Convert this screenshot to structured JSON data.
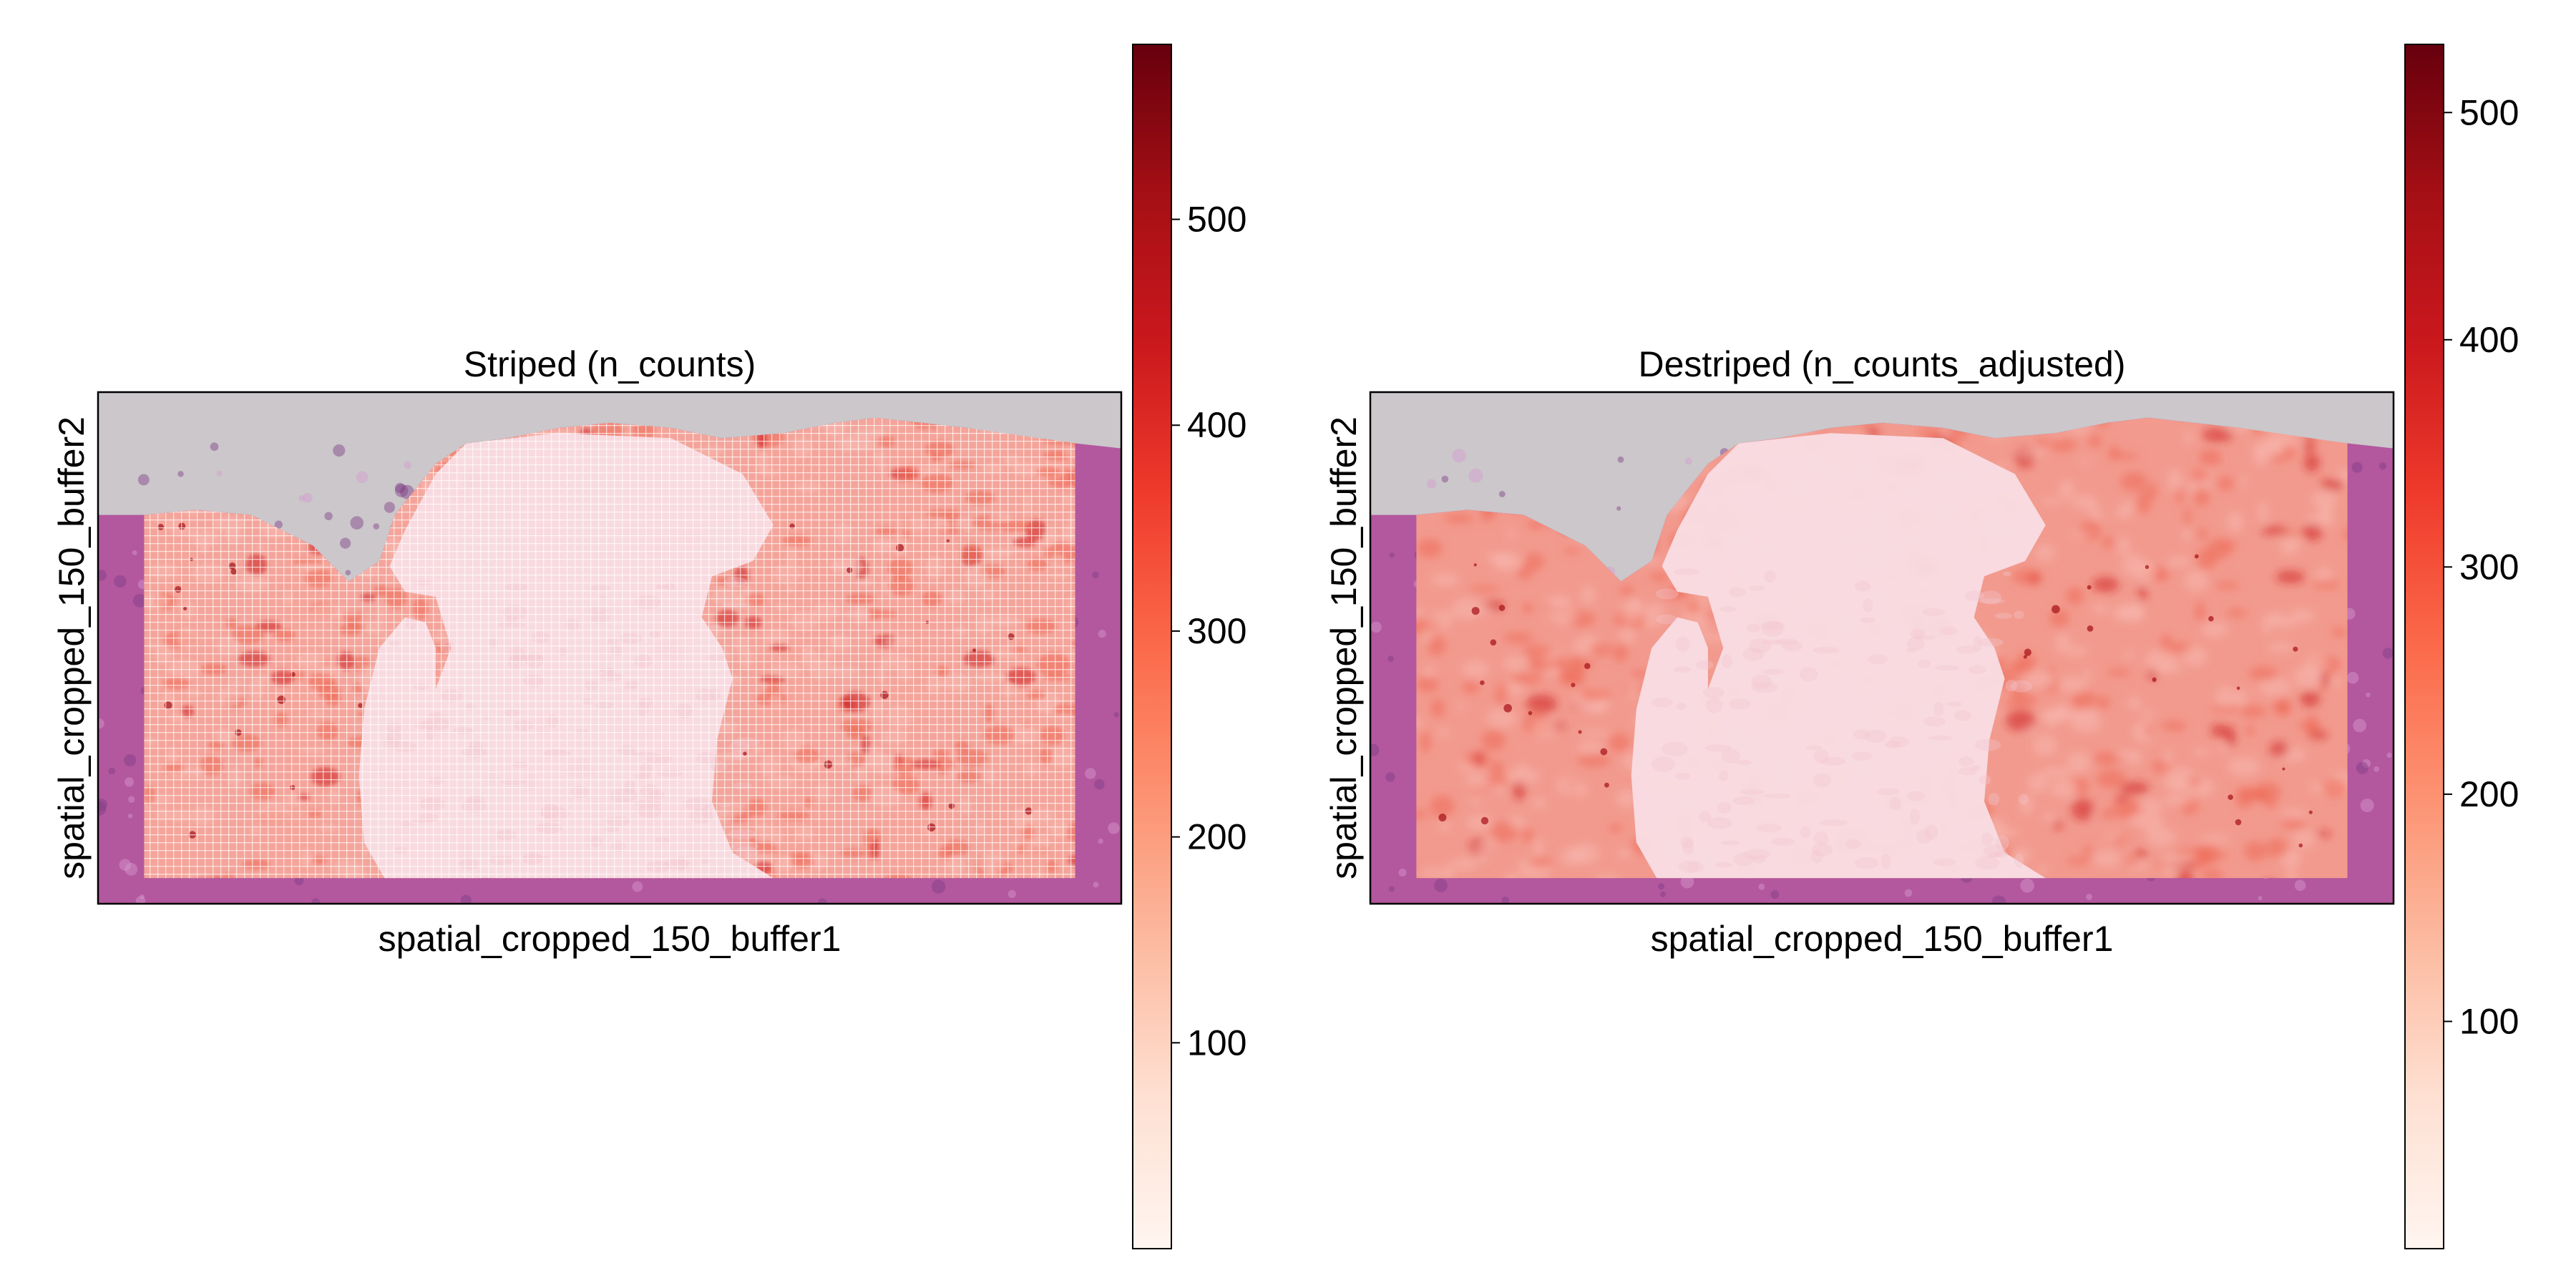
{
  "figure": {
    "background": "#ffffff"
  },
  "chart_data": [
    {
      "type": "heatmap",
      "title": "Striped (n_counts)",
      "xlabel": "spatial_cropped_150_buffer1",
      "ylabel": "spatial_cropped_150_buffer2",
      "colormap": "Reds",
      "colorbar": {
        "ticks": [
          100,
          200,
          300,
          400,
          500
        ],
        "range": [
          0,
          585
        ]
      },
      "pattern": "striped",
      "grid": false
    },
    {
      "type": "heatmap",
      "title": "Destriped (n_counts_adjusted)",
      "xlabel": "spatial_cropped_150_buffer1",
      "ylabel": "spatial_cropped_150_buffer2",
      "colormap": "Reds",
      "colorbar": {
        "ticks": [
          100,
          200,
          300,
          400,
          500
        ],
        "range": [
          0,
          530
        ]
      },
      "pattern": "smooth",
      "grid": false
    }
  ],
  "colors": {
    "background_region": "#cbc7ca",
    "tissue": "#b3579e",
    "low_count": "#f8dde3",
    "mid_count": "#ef6a55",
    "high_count": "#cf1f22",
    "colormap_stops": [
      "#fff5f0",
      "#fee0d2",
      "#fcbba1",
      "#fc9272",
      "#fb6a4a",
      "#ef3b2c",
      "#cb181d",
      "#a50f15",
      "#67000d"
    ]
  }
}
